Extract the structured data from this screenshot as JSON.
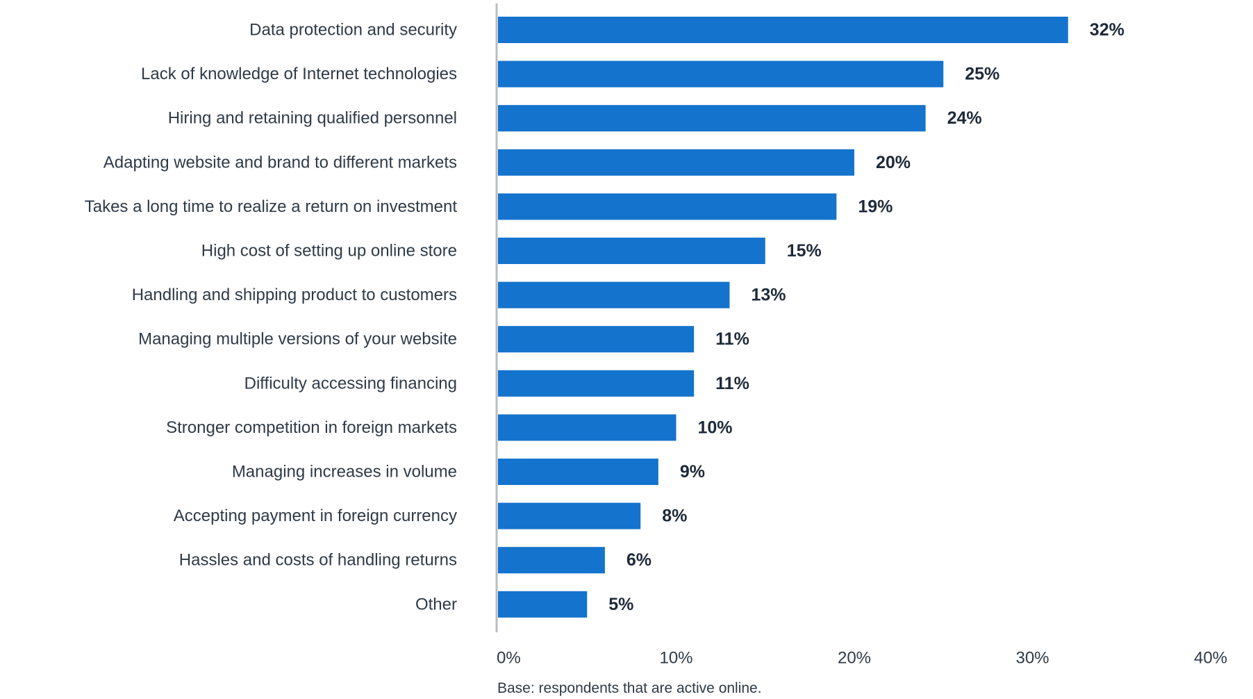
{
  "chart_data": {
    "type": "bar",
    "orientation": "horizontal",
    "title": "",
    "xlabel": "",
    "ylabel": "",
    "categories": [
      "Data protection and security",
      "Lack of knowledge of Internet technologies",
      "Hiring and retaining qualified personnel",
      "Adapting website and brand to different markets",
      "Takes a long time to realize a return on investment",
      "High cost of setting up online store",
      "Handling and shipping product to customers",
      "Managing multiple versions of your website",
      "Difficulty accessing financing",
      "Stronger competition in foreign markets",
      "Managing increases in volume",
      "Accepting payment in foreign currency",
      "Hassles and costs of handling returns",
      "Other"
    ],
    "values": [
      32,
      25,
      24,
      20,
      19,
      15,
      13,
      11,
      11,
      10,
      9,
      8,
      6,
      5
    ],
    "value_labels": [
      "32%",
      "25%",
      "24%",
      "20%",
      "19%",
      "15%",
      "13%",
      "11%",
      "11%",
      "10%",
      "9%",
      "8%",
      "6%",
      "5%"
    ],
    "xlim": [
      0,
      40
    ],
    "x_ticks": [
      0,
      10,
      20,
      30,
      40
    ],
    "x_tick_labels": [
      "0%",
      "10%",
      "20%",
      "30%",
      "40%"
    ],
    "grid": false,
    "legend": "none",
    "bar_color": "#1473cc",
    "axis_color": "#b8bcc2",
    "note": "Base: respondents that are active online."
  }
}
